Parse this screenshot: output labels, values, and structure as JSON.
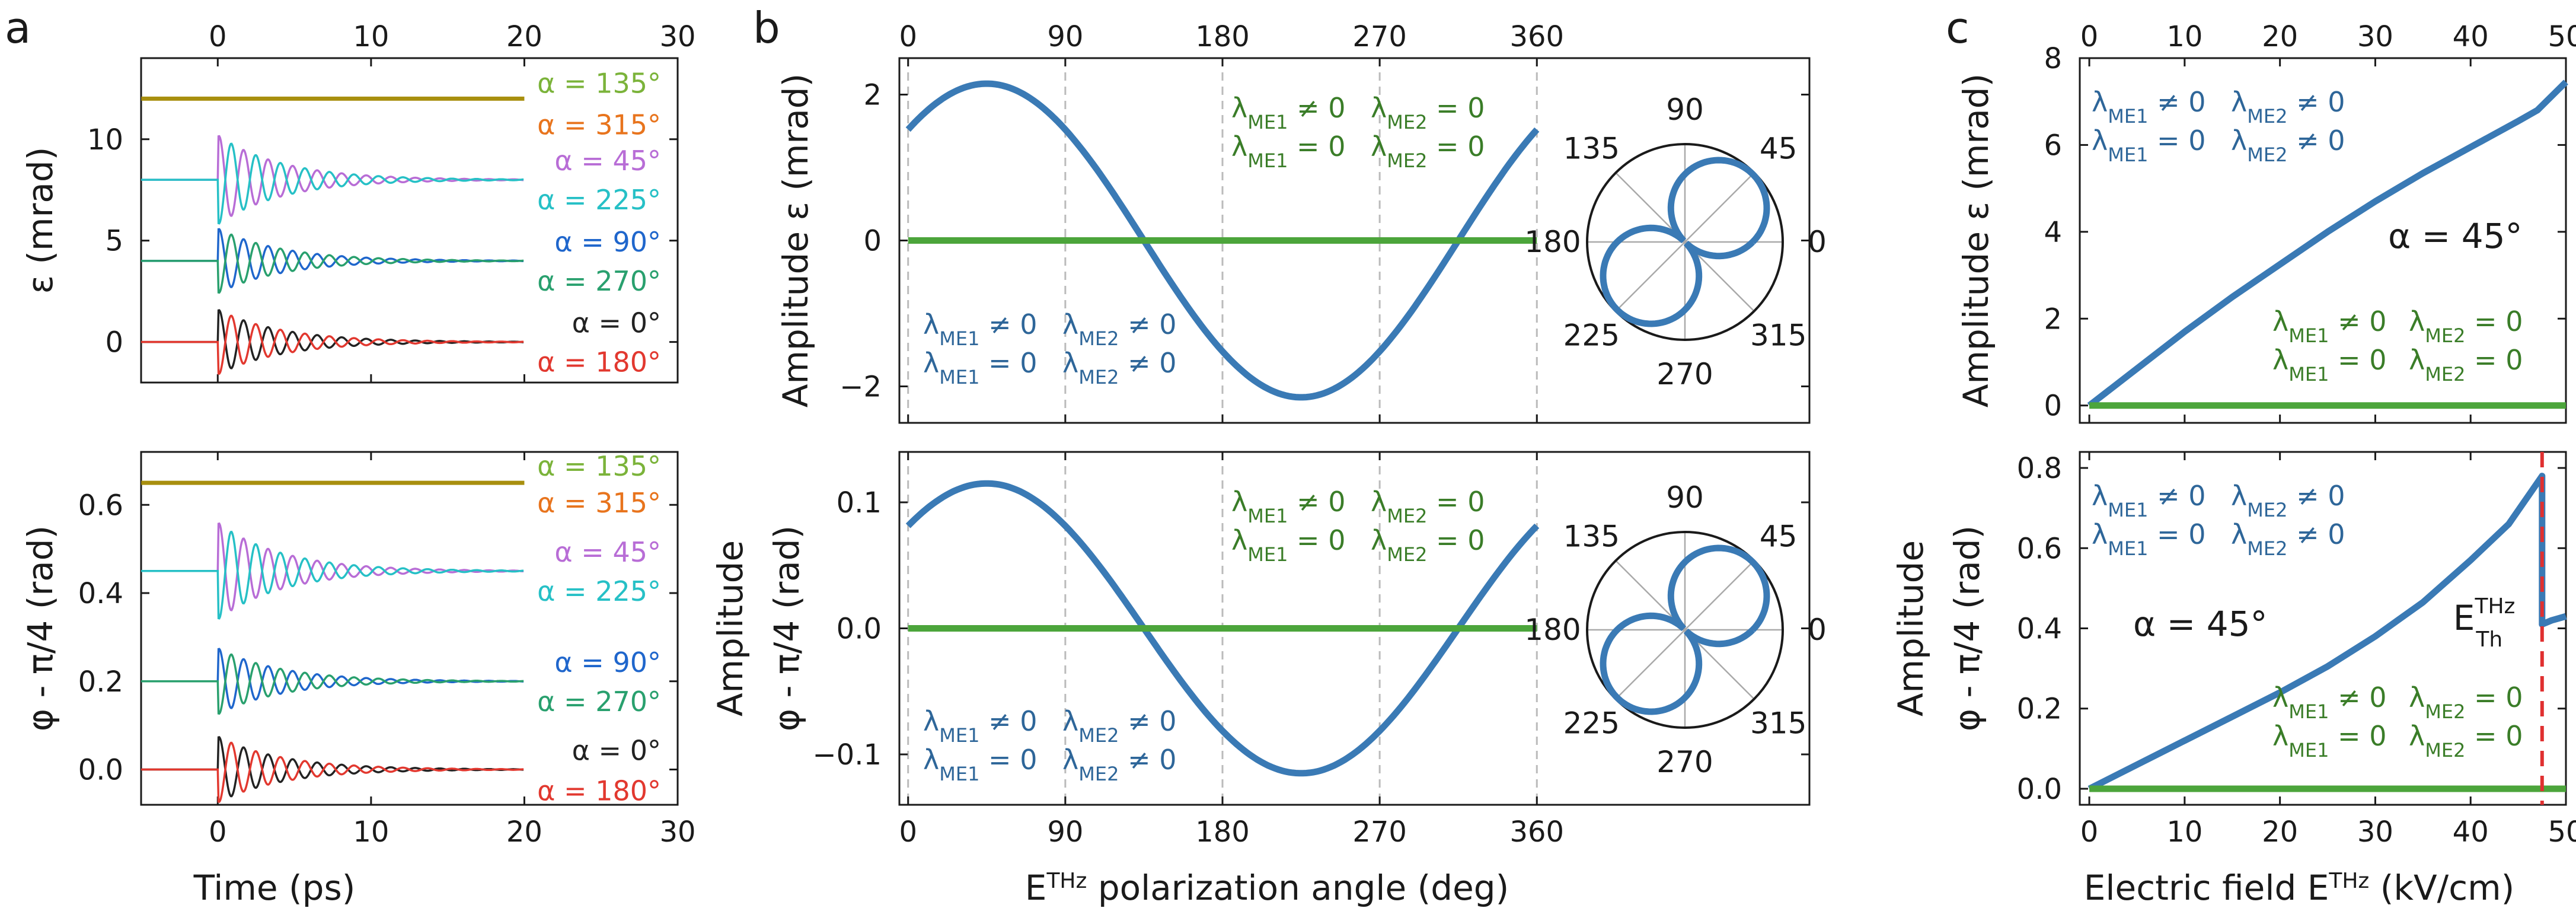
{
  "panel_labels": [
    "a",
    "b",
    "c"
  ],
  "colors": {
    "olive": "#a88f0e",
    "blue": "#3a7ab5",
    "green": "#4ca53b",
    "text_green": "#3a7d28",
    "text_blue": "#2e6699",
    "lime": "#7bb33a",
    "orange": "#e8741d",
    "purple": "#b86dd6",
    "cyan": "#26c0c6",
    "dblue": "#1f66cc",
    "dgreen": "#29a06e",
    "black": "#222222",
    "red": "#e2382f",
    "dash_red": "#e03030",
    "vgrid": "#bbbbbb"
  },
  "lambda_labels": {
    "me1_ne0": "λ_ME1 ≠ 0",
    "me1_eq0": "λ_ME1 = 0",
    "me2_ne0": "λ_ME2 ≠ 0",
    "me2_eq0": "λ_ME2 = 0",
    "lam": "λ",
    "sub1": "ME1",
    "sub2": "ME2",
    "ne0": " ≠ 0",
    "eq0": " = 0"
  },
  "alpha45": "α = 45°",
  "threshold": {
    "main": "E",
    "sup": "THz",
    "sub": "Th"
  },
  "chart_data": [
    {
      "id": "a-top",
      "type": "line",
      "xlabel": "",
      "ylabel": "ε (mrad)",
      "xlim": [
        -5,
        30
      ],
      "ylim": [
        -2,
        14
      ],
      "xticks": [
        0,
        10,
        20,
        30
      ],
      "yticks": [
        0,
        5,
        10
      ],
      "top_xticks": [
        0,
        10,
        20,
        30
      ],
      "series": [
        {
          "name": "α = 135° / α = 315°",
          "kind": "flat",
          "offset": 12,
          "color": "#a88f0e"
        },
        {
          "name": "α = 45°",
          "kind": "damped",
          "offset": 8,
          "amp": 2.2,
          "phase": 0,
          "color": "#b86dd6"
        },
        {
          "name": "α = 225°",
          "kind": "damped",
          "offset": 8,
          "amp": 2.2,
          "phase": 180,
          "color": "#26c0c6"
        },
        {
          "name": "α = 90°",
          "kind": "damped",
          "offset": 4,
          "amp": 1.6,
          "phase": 0,
          "color": "#1f66cc"
        },
        {
          "name": "α = 270°",
          "kind": "damped",
          "offset": 4,
          "amp": 1.6,
          "phase": 180,
          "color": "#29a06e"
        },
        {
          "name": "α = 0°",
          "kind": "damped",
          "offset": 0,
          "amp": 1.6,
          "phase": 0,
          "color": "#222222"
        },
        {
          "name": "α = 180°",
          "kind": "damped",
          "offset": 0,
          "amp": 1.6,
          "phase": 180,
          "color": "#e2382f"
        }
      ],
      "legend": [
        {
          "text": "α = 135°",
          "color": "#7bb33a"
        },
        {
          "text": "α = 315°",
          "color": "#e8741d"
        },
        {
          "text": "α = 45°",
          "color": "#b86dd6"
        },
        {
          "text": "α = 225°",
          "color": "#26c0c6"
        },
        {
          "text": "α = 90°",
          "color": "#1f66cc"
        },
        {
          "text": "α = 270°",
          "color": "#29a06e"
        },
        {
          "text": "α = 0°",
          "color": "#222222"
        },
        {
          "text": "α = 180°",
          "color": "#e2382f"
        }
      ]
    },
    {
      "id": "a-bottom",
      "type": "line",
      "xlabel": "Time (ps)",
      "ylabel": "φ - π/4 (rad)",
      "xlim": [
        -5,
        30
      ],
      "ylim": [
        -0.08,
        0.72
      ],
      "xticks": [
        0,
        10,
        20,
        30
      ],
      "yticks": [
        0.0,
        0.2,
        0.4,
        0.6
      ],
      "ytick_labels": [
        "0.0",
        "0.2",
        "0.4",
        "0.6"
      ],
      "series": [
        {
          "name": "α = 135° / α = 315°",
          "kind": "flat",
          "offset": 0.65,
          "color": "#a88f0e"
        },
        {
          "name": "α = 45°",
          "kind": "damped",
          "offset": 0.45,
          "amp": 0.11,
          "phase": 0,
          "color": "#b86dd6"
        },
        {
          "name": "α = 225°",
          "kind": "damped",
          "offset": 0.45,
          "amp": 0.11,
          "phase": 180,
          "color": "#26c0c6"
        },
        {
          "name": "α = 90°",
          "kind": "damped",
          "offset": 0.2,
          "amp": 0.075,
          "phase": 0,
          "color": "#1f66cc"
        },
        {
          "name": "α = 270°",
          "kind": "damped",
          "offset": 0.2,
          "amp": 0.075,
          "phase": 180,
          "color": "#29a06e"
        },
        {
          "name": "α = 0°",
          "kind": "damped",
          "offset": 0.0,
          "amp": 0.075,
          "phase": 0,
          "color": "#222222"
        },
        {
          "name": "α = 180°",
          "kind": "damped",
          "offset": 0.0,
          "amp": 0.075,
          "phase": 180,
          "color": "#e2382f"
        }
      ],
      "legend": [
        {
          "text": "α = 135°",
          "color": "#7bb33a"
        },
        {
          "text": "α = 315°",
          "color": "#e8741d"
        },
        {
          "text": "α = 45°",
          "color": "#b86dd6"
        },
        {
          "text": "α = 225°",
          "color": "#26c0c6"
        },
        {
          "text": "α = 90°",
          "color": "#1f66cc"
        },
        {
          "text": "α = 270°",
          "color": "#29a06e"
        },
        {
          "text": "α = 0°",
          "color": "#222222"
        },
        {
          "text": "α = 180°",
          "color": "#e2382f"
        }
      ]
    },
    {
      "id": "b-top",
      "type": "line",
      "ylabel": "Amplitude ε (mrad)",
      "xlim": [
        -5,
        365
      ],
      "ylim": [
        -2.5,
        2.5
      ],
      "xticks": [
        0,
        90,
        180,
        270,
        360
      ],
      "top_xticks": [
        0,
        90,
        180,
        270,
        360
      ],
      "yticks": [
        -2,
        0,
        2
      ],
      "ytick_labels": [
        "−2",
        "0",
        "2"
      ],
      "vlines": [
        0,
        90,
        180,
        270,
        360
      ],
      "series": [
        {
          "name": "λME1 ≠ 0, λME2 ≠ 0 / λME1 = 0, λME2 ≠ 0",
          "kind": "sine",
          "amp": 2.15,
          "phase_deg": 45,
          "color": "#3a7ab5"
        },
        {
          "name": "λME1 ≠ 0, λME2 = 0 / λME1 = 0, λME2 = 0",
          "kind": "zero",
          "color": "#4ca53b"
        }
      ],
      "polar": {
        "angle_labels": [
          "90",
          "45",
          "0",
          "315",
          "270",
          "225",
          "180",
          "135"
        ]
      }
    },
    {
      "id": "b-bottom",
      "type": "line",
      "xlabel": "E^THz polarization angle (deg)",
      "xlabel_parts": [
        "E",
        "THz",
        " polarization angle (deg)"
      ],
      "ylabel": "Amplitude φ - π/4 (rad)",
      "ylabel_lines": [
        "Amplitude",
        "φ - π/4 (rad)"
      ],
      "xlim": [
        -5,
        365
      ],
      "ylim": [
        -0.14,
        0.14
      ],
      "xticks": [
        0,
        90,
        180,
        270,
        360
      ],
      "yticks": [
        -0.1,
        0.0,
        0.1
      ],
      "ytick_labels": [
        "−0.1",
        "0.0",
        "0.1"
      ],
      "vlines": [
        0,
        90,
        180,
        270,
        360
      ],
      "series": [
        {
          "name": "λME1 ≠ 0, λME2 ≠ 0 / λME1 = 0, λME2 ≠ 0",
          "kind": "sine",
          "amp": 0.115,
          "phase_deg": 45,
          "color": "#3a7ab5"
        },
        {
          "name": "λME1 ≠ 0, λME2 = 0 / λME1 = 0, λME2 = 0",
          "kind": "zero",
          "color": "#4ca53b"
        }
      ],
      "polar": {
        "angle_labels": [
          "90",
          "45",
          "0",
          "315",
          "270",
          "225",
          "180",
          "135"
        ]
      }
    },
    {
      "id": "c-top",
      "type": "line",
      "ylabel": "Amplitude ε (mrad)",
      "xlim": [
        -1,
        50
      ],
      "ylim": [
        -0.4,
        8
      ],
      "xticks": [
        0,
        10,
        20,
        30,
        40,
        50
      ],
      "top_xticks": [
        0,
        10,
        20,
        30,
        40,
        50
      ],
      "yticks": [
        0,
        2,
        4,
        6,
        8
      ],
      "series": [
        {
          "name": "λME1 ≠ 0, λME2 ≠ 0 / λME1 = 0, λME2 ≠ 0",
          "x": [
            0,
            5,
            10,
            15,
            20,
            25,
            30,
            35,
            40,
            45,
            47,
            50
          ],
          "y": [
            0,
            0.85,
            1.7,
            2.5,
            3.25,
            4.0,
            4.7,
            5.35,
            5.95,
            6.55,
            6.8,
            7.45
          ],
          "color": "#3a7ab5"
        },
        {
          "name": "λME1 ≠ 0, λME2 = 0 / λME1 = 0, λME2 = 0",
          "x": [
            0,
            50
          ],
          "y": [
            0,
            0
          ],
          "color": "#4ca53b"
        }
      ]
    },
    {
      "id": "c-bottom",
      "type": "line",
      "xlabel": "Electric field E^THz (kV/cm)",
      "xlabel_parts": [
        "Electric field E",
        "THz",
        " (kV/cm)"
      ],
      "ylabel": "Amplitude φ - π/4 (rad)",
      "ylabel_lines": [
        "Amplitude",
        "φ - π/4 (rad)"
      ],
      "xlim": [
        -1,
        50
      ],
      "ylim": [
        -0.04,
        0.84
      ],
      "xticks": [
        0,
        10,
        20,
        30,
        40,
        50
      ],
      "yticks": [
        0.0,
        0.2,
        0.4,
        0.6,
        0.8
      ],
      "ytick_labels": [
        "0.0",
        "0.2",
        "0.4",
        "0.6",
        "0.8"
      ],
      "threshold_x": 47.5,
      "series": [
        {
          "name": "λME1 ≠ 0, λME2 ≠ 0 / λME1 = 0, λME2 ≠ 0",
          "x": [
            0,
            5,
            10,
            15,
            20,
            25,
            30,
            35,
            40,
            44,
            47.5,
            47.5,
            48.5,
            50
          ],
          "y": [
            0,
            0.06,
            0.12,
            0.18,
            0.24,
            0.305,
            0.38,
            0.465,
            0.57,
            0.66,
            0.78,
            0.41,
            0.42,
            0.43
          ],
          "color": "#3a7ab5"
        },
        {
          "name": "λME1 ≠ 0, λME2 = 0 / λME1 = 0, λME2 = 0",
          "x": [
            0,
            50
          ],
          "y": [
            0,
            0
          ],
          "color": "#4ca53b"
        }
      ]
    }
  ]
}
